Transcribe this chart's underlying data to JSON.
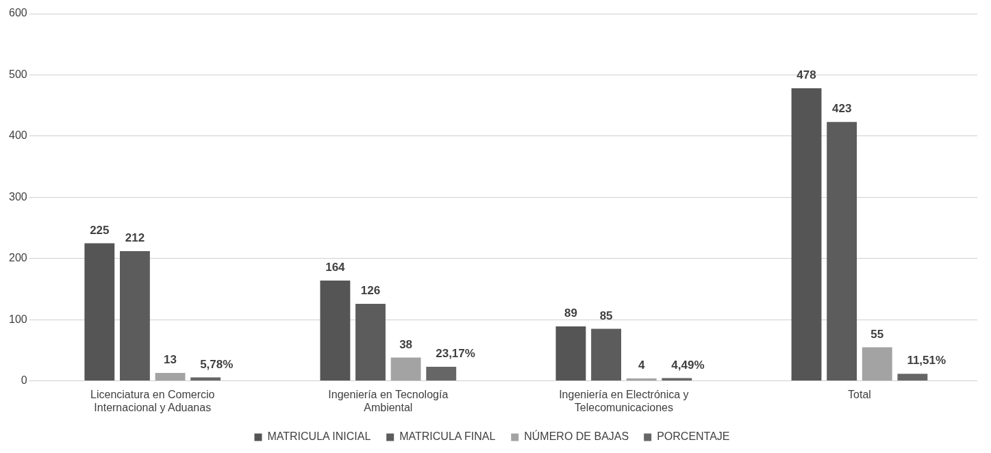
{
  "chart_data": {
    "type": "bar",
    "categories": [
      "Licenciatura en Comercio Internacional y Aduanas",
      "Ingeniería en Tecnología Ambiental",
      "Ingeniería en Electrónica y Telecomunicaciones",
      "Total"
    ],
    "series": [
      {
        "name": "MATRICULA INICIAL",
        "color": "#555555",
        "values": [
          225,
          164,
          89,
          478
        ],
        "value_labels": [
          "225",
          "164",
          "89",
          "478"
        ]
      },
      {
        "name": "MATRICULA FINAL",
        "color": "#5c5c5c",
        "values": [
          212,
          126,
          85,
          423
        ],
        "value_labels": [
          "212",
          "126",
          "85",
          "423"
        ]
      },
      {
        "name": "NÚMERO DE BAJAS",
        "color": "#a3a3a3",
        "values": [
          13,
          38,
          4,
          55
        ],
        "value_labels": [
          "13",
          "38",
          "4",
          "55"
        ]
      },
      {
        "name": "PORCENTAJE",
        "color": "#666666",
        "values": [
          5.78,
          23.17,
          4.49,
          11.51
        ],
        "value_labels": [
          "5,78%",
          "23,17%",
          "4,49%",
          "11,51%"
        ]
      }
    ],
    "ylim": [
      0,
      600
    ],
    "yticks": [
      0,
      100,
      200,
      300,
      400,
      500,
      600
    ],
    "grid": "y",
    "legend": "bottom"
  }
}
